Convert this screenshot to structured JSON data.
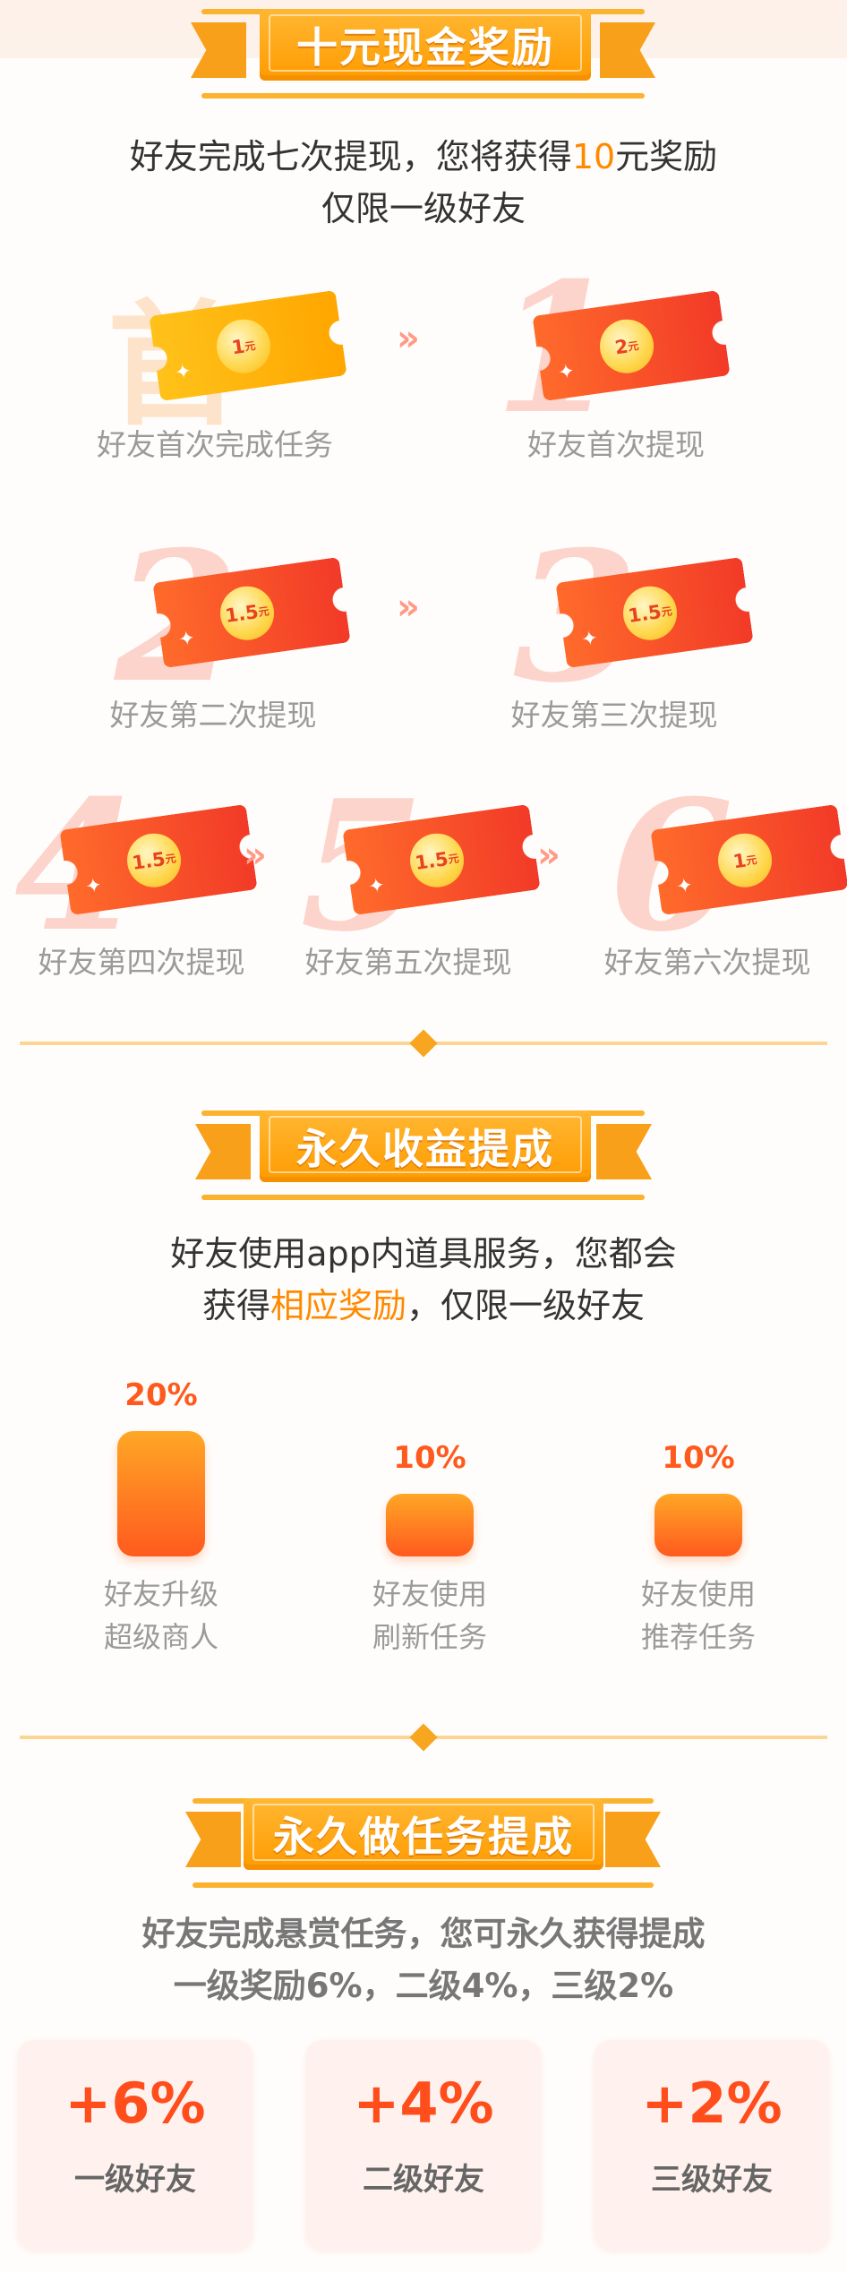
{
  "section1": {
    "title": "十元现金奖励",
    "desc_prefix": "好友完成七次提现，您将获得",
    "desc_amount": "10",
    "desc_suffix": "元奖励",
    "desc_line2": "仅限一级好友",
    "steps": [
      {
        "badge": "首",
        "amount": "1",
        "unit": "元",
        "label": "好友首次完成任务"
      },
      {
        "badge": "1",
        "amount": "2",
        "unit": "元",
        "label": "好友首次提现"
      },
      {
        "badge": "2",
        "amount": "1.5",
        "unit": "元",
        "label": "好友第二次提现"
      },
      {
        "badge": "3",
        "amount": "1.5",
        "unit": "元",
        "label": "好友第三次提现"
      },
      {
        "badge": "4",
        "amount": "1.5",
        "unit": "元",
        "label": "好友第四次提现"
      },
      {
        "badge": "5",
        "amount": "1.5",
        "unit": "元",
        "label": "好友第五次提现"
      },
      {
        "badge": "6",
        "amount": "1",
        "unit": "元",
        "label": "好友第六次提现"
      }
    ],
    "arrow_glyph": "»"
  },
  "section2": {
    "title": "永久收益提成",
    "desc_line1": "好友使用app内道具服务，您都会",
    "desc_line2_prefix": "获得",
    "desc_line2_highlight": "相应奖励",
    "desc_line2_suffix": "，仅限一级好友",
    "bars": [
      {
        "percent": "20%",
        "value": 20,
        "line1": "好友升级",
        "line2": "超级商人"
      },
      {
        "percent": "10%",
        "value": 10,
        "line1": "好友使用",
        "line2": "刷新任务"
      },
      {
        "percent": "10%",
        "value": 10,
        "line1": "好友使用",
        "line2": "推荐任务"
      }
    ]
  },
  "section3": {
    "title": "永久做任务提成",
    "desc_line1": "好友完成悬赏任务，您可永久获得提成",
    "desc_line2": "一级奖励6%，二级4%，三级2%",
    "tiles": [
      {
        "value": "+6%",
        "level": "一级好友"
      },
      {
        "value": "+4%",
        "level": "二级好友"
      },
      {
        "value": "+2%",
        "level": "三级好友"
      }
    ]
  },
  "colors": {
    "accent": "#ff9b00",
    "ticket": "#f23a28",
    "highlight": "#ff8a00",
    "tile_bg": "#fff2ee"
  },
  "icons": {
    "sparkle": "sparkle-icon",
    "divider": "diamond-icon"
  }
}
